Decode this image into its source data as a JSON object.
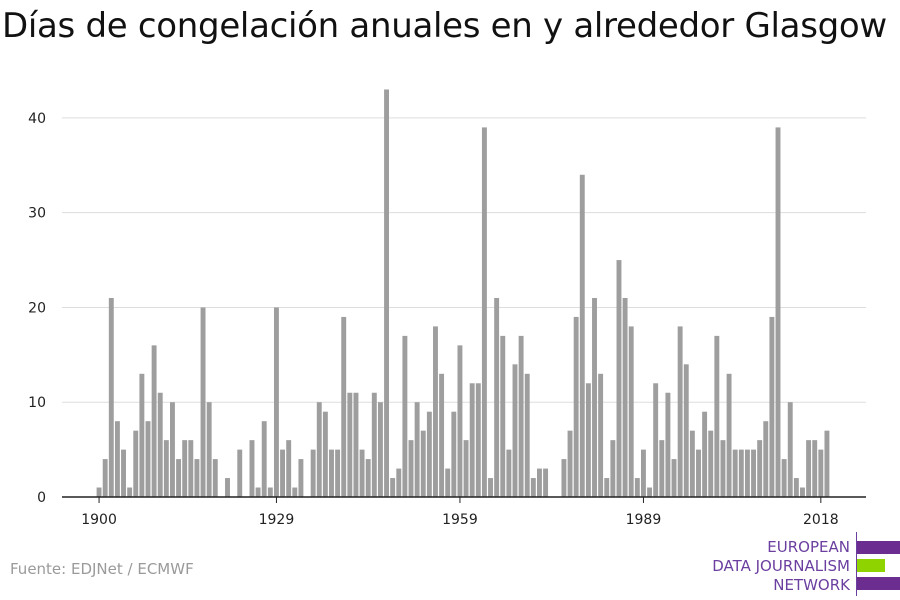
{
  "title": "Días de congelación anuales en y alrededor Glasgow",
  "source": "Fuente: EDJNet / ECMWF",
  "logo": {
    "lines": [
      "EUROPEAN",
      "DATA JOURNALISM",
      "NETWORK"
    ],
    "colors": {
      "text": "#6b3fa0",
      "purple": "#6b2d8f",
      "green": "#8fd400"
    }
  },
  "colors": {
    "bar": "#9e9e9e",
    "grid": "#dddddd",
    "axis": "#222222"
  },
  "chart_data": {
    "type": "bar",
    "x_start": 1900,
    "x_end": 2020,
    "xticks": [
      1900,
      1929,
      1959,
      1989,
      2018
    ],
    "yticks": [
      0,
      10,
      20,
      30,
      40
    ],
    "ylim": [
      0,
      44
    ],
    "grid": true,
    "values": [
      1,
      4,
      21,
      8,
      5,
      1,
      7,
      13,
      8,
      16,
      11,
      6,
      10,
      4,
      6,
      6,
      4,
      20,
      10,
      4,
      0,
      2,
      0,
      5,
      0,
      6,
      1,
      8,
      1,
      20,
      5,
      6,
      1,
      4,
      0,
      5,
      10,
      9,
      5,
      5,
      19,
      11,
      11,
      5,
      4,
      11,
      10,
      43,
      2,
      3,
      17,
      6,
      10,
      7,
      9,
      18,
      13,
      3,
      9,
      16,
      6,
      12,
      12,
      39,
      2,
      21,
      17,
      5,
      14,
      17,
      13,
      2,
      3,
      3,
      0,
      0,
      4,
      7,
      19,
      34,
      12,
      21,
      13,
      2,
      6,
      25,
      21,
      18,
      2,
      5,
      1,
      12,
      6,
      11,
      4,
      18,
      14,
      7,
      5,
      9,
      7,
      17,
      6,
      13,
      5,
      5,
      5,
      5,
      6,
      8,
      19,
      39,
      4,
      10,
      2,
      1,
      6,
      6,
      5,
      7
    ]
  }
}
